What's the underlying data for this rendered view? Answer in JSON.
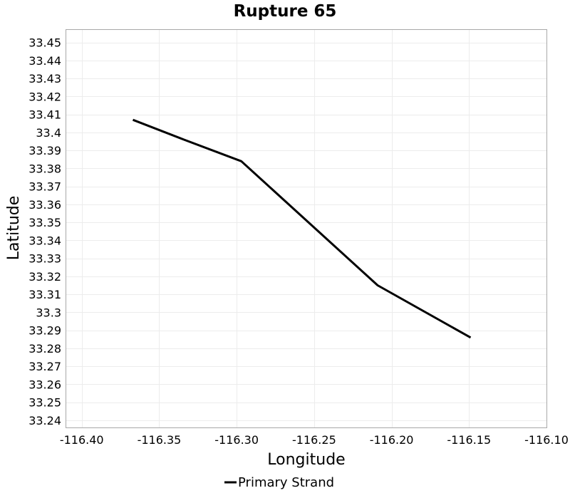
{
  "chart_data": {
    "type": "line",
    "title": "Rupture 65",
    "xlabel": "Longitude",
    "ylabel": "Latitude",
    "xlim": [
      -116.41,
      -116.1
    ],
    "ylim": [
      33.236,
      33.457
    ],
    "x_ticks": [
      -116.4,
      -116.35,
      -116.3,
      -116.25,
      -116.2,
      -116.15,
      -116.1
    ],
    "x_tick_labels": [
      "-116.40",
      "-116.35",
      "-116.30",
      "-116.25",
      "-116.20",
      "-116.15",
      "-116.10"
    ],
    "y_ticks": [
      33.24,
      33.25,
      33.26,
      33.27,
      33.28,
      33.29,
      33.3,
      33.31,
      33.32,
      33.33,
      33.34,
      33.35,
      33.36,
      33.37,
      33.38,
      33.39,
      33.4,
      33.41,
      33.42,
      33.43,
      33.44,
      33.45
    ],
    "y_tick_labels": [
      "33.24",
      "33.25",
      "33.26",
      "33.27",
      "33.28",
      "33.29",
      "33.3",
      "33.31",
      "33.32",
      "33.33",
      "33.34",
      "33.35",
      "33.36",
      "33.37",
      "33.38",
      "33.39",
      "33.4",
      "33.41",
      "33.42",
      "33.43",
      "33.44",
      "33.45"
    ],
    "grid": true,
    "legend_position": "bottom-center",
    "series": [
      {
        "name": "Primary Strand",
        "color": "#000000",
        "x": [
          -116.367,
          -116.334,
          -116.297,
          -116.209,
          -116.149
        ],
        "y": [
          33.407,
          33.396,
          33.384,
          33.315,
          33.286
        ]
      }
    ]
  }
}
